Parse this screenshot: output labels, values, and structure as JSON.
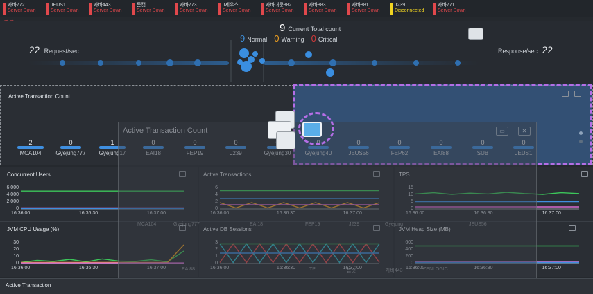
{
  "servers": [
    {
      "name": "자바772",
      "status": "Server Down",
      "level": "down"
    },
    {
      "name": "JEUS1",
      "status": "Server Down",
      "level": "down"
    },
    {
      "name": "자바443",
      "status": "Server Down",
      "level": "down"
    },
    {
      "name": "톰캣",
      "status": "Server Down",
      "level": "down"
    },
    {
      "name": "자바773",
      "status": "Server Down",
      "level": "down"
    },
    {
      "name": "J제우스",
      "status": "Server Down",
      "level": "down"
    },
    {
      "name": "자바대문882",
      "status": "Server Down",
      "level": "down"
    },
    {
      "name": "자바883",
      "status": "Server Down",
      "level": "down"
    },
    {
      "name": "자바881",
      "status": "Server Down",
      "level": "down"
    },
    {
      "name": "J239",
      "status": "Disconnected",
      "level": "warn"
    },
    {
      "name": "자바771",
      "status": "Server Down",
      "level": "down"
    }
  ],
  "topology": {
    "request_value": "22",
    "request_label": "Request/sec",
    "response_value": "22",
    "response_label": "Response/sec",
    "total_value": "9",
    "total_label": "Current Total count",
    "normal_value": "9",
    "normal_label": "Normal",
    "warning_value": "0",
    "warning_label": "Warning",
    "critical_value": "0",
    "critical_label": "Critical"
  },
  "transaction_count": {
    "title": "Active Transaction Count",
    "items": [
      {
        "label": "MCA104",
        "value": "2"
      },
      {
        "label": "Gyejung777",
        "value": "0"
      },
      {
        "label": "Gyejung17",
        "value": "1"
      },
      {
        "label": "EAI18",
        "value": "0"
      },
      {
        "label": "FEP19",
        "value": "0"
      },
      {
        "label": "J239",
        "value": "0"
      },
      {
        "label": "Gyejung30",
        "value": "0"
      },
      {
        "label": "Gyejung40",
        "value": "0"
      },
      {
        "label": "JEUS56",
        "value": "0"
      },
      {
        "label": "FEP62",
        "value": "0"
      },
      {
        "label": "EAI88",
        "value": "0"
      },
      {
        "label": "SUB",
        "value": "0"
      },
      {
        "label": "JEUS1",
        "value": "0"
      }
    ]
  },
  "panels": {
    "concurrent_users": {
      "title": "Concurrent Users",
      "yticks": [
        "6,000",
        "4,000",
        "2,000",
        "0"
      ],
      "xticks": [
        "16:36:00",
        "16:36:30",
        "16:37:00"
      ]
    },
    "active_transactions": {
      "title": "Active Transactions",
      "yticks": [
        "6",
        "4",
        "2",
        "0"
      ],
      "xticks": [
        "16:36:00",
        "16:36:30",
        "16:37:00"
      ]
    },
    "tps": {
      "title": "TPS",
      "yticks": [
        "15",
        "10",
        "5",
        "0"
      ],
      "xticks": [
        "16:36:00",
        "16:36:30",
        "16:37:00"
      ]
    },
    "jvm_cpu": {
      "title": "JVM CPU Usage (%)",
      "yticks": [
        "30",
        "20",
        "10",
        "0"
      ],
      "xticks": [
        "16:36:00",
        "16:36:30",
        "16:37:00"
      ]
    },
    "active_db": {
      "title": "Active DB Sessions",
      "yticks": [
        "3",
        "2",
        "1",
        "0"
      ],
      "xticks": [
        "16:36:00",
        "16:36:30",
        "16:37:00"
      ]
    },
    "jvm_heap": {
      "title": "JVM Heap Size (MB)",
      "yticks": [
        "600",
        "400",
        "200",
        "0"
      ],
      "xticks": [
        "16:36:00",
        "16:36:30",
        "16:37:00"
      ]
    }
  },
  "dialog": {
    "title": "Active Transaction Count",
    "ghost_row1": [
      "MCA104",
      "Gyejung777",
      "EAI18",
      "FEP19",
      "J239",
      "Gyejung",
      "JEUS56"
    ],
    "ghost_row2": [
      "EAI88",
      "TP",
      "톰캣",
      "자바443",
      "ZENLOGIC"
    ]
  },
  "footer": {
    "title": "Active Transaction"
  },
  "colors": {
    "green": "#3cc65a",
    "blue": "#3f8fe0",
    "red": "#e0484c",
    "yellow": "#f0d422",
    "pink": "#d86ad0",
    "cyan": "#2fb8c8",
    "orange": "#f0a020",
    "purple_highlight": "#b46ee6"
  }
}
